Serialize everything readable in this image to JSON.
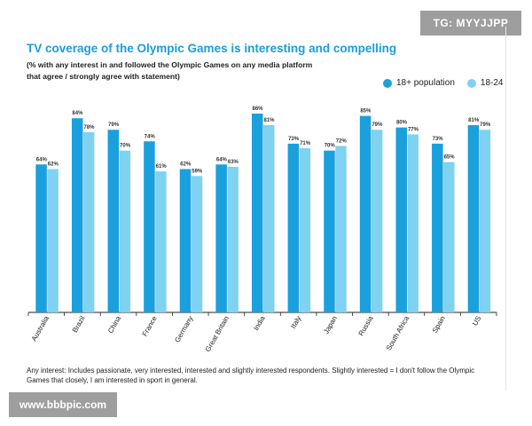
{
  "watermarks": {
    "top": "TG: MYYJJPP",
    "bottom": "www.bbbpic.com"
  },
  "colors": {
    "title": "#1a9ed8",
    "series_18plus": "#1aa0dc",
    "series_18_24": "#7fd2f0",
    "axis": "#222222"
  },
  "chart_data": {
    "type": "bar",
    "title": "TV coverage of the Olympic Games is interesting and compelling",
    "subtitle": "(% with any interest in and followed the Olympic Games on any media platform that agree / strongly agree with statement)",
    "xlabel": "",
    "ylabel": "",
    "ylim": [
      0,
      100
    ],
    "grid": false,
    "legend_position": "top-right",
    "categories": [
      "Australia",
      "Brazil",
      "China",
      "France",
      "Germany",
      "Great Britain",
      "India",
      "Italy",
      "Japan",
      "Russia",
      "South Africa",
      "Spain",
      "US"
    ],
    "series": [
      {
        "name": "18+ population",
        "values": [
          64,
          84,
          79,
          74,
          62,
          64,
          86,
          73,
          70,
          85,
          80,
          73,
          81
        ]
      },
      {
        "name": "18-24",
        "values": [
          62,
          78,
          70,
          61,
          59,
          63,
          81,
          71,
          72,
          79,
          77,
          65,
          79
        ]
      }
    ],
    "value_suffix": "%"
  },
  "footnote": "Any interest: Includes passionate, very interested, interested and slightly interested respondents. Slightly interested = I don't follow the Olympic Games that closely, I am interested in sport in general."
}
